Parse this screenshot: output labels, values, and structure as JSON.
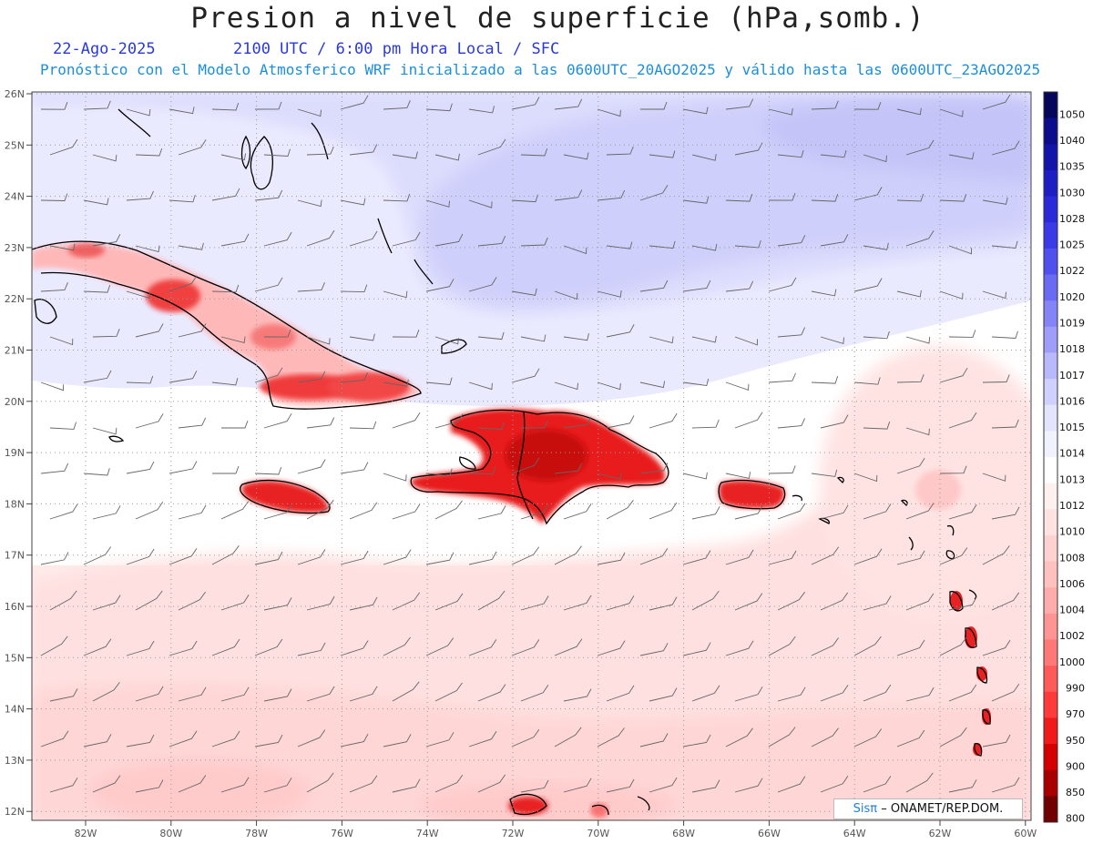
{
  "title": "Presion a nivel de superficie (hPa,somb.)",
  "subtitle_date": "22-Ago-2025",
  "subtitle_time": "2100 UTC / 6:00 pm Hora Local / SFC",
  "subtitle_model": "Pronóstico con el Modelo Atmosferico WRF inicializado a las 0600UTC_20AGO2025 y válido hasta las  0600UTC_23AGO2025",
  "lat_ticks": [
    "26N",
    "25N",
    "24N",
    "23N",
    "22N",
    "21N",
    "20N",
    "19N",
    "18N",
    "17N",
    "16N",
    "15N",
    "14N",
    "13N",
    "12N"
  ],
  "lon_ticks": [
    "82W",
    "80W",
    "78W",
    "76W",
    "74W",
    "72W",
    "70W",
    "68W",
    "66W",
    "64W",
    "62W",
    "60W"
  ],
  "colorbar": {
    "levels": [
      "1050",
      "1040",
      "1035",
      "1030",
      "1028",
      "1025",
      "1022",
      "1020",
      "1019",
      "1018",
      "1017",
      "1016",
      "1015",
      "1014",
      "1013",
      "1012",
      "1010",
      "1008",
      "1006",
      "1004",
      "1002",
      "1000",
      "990",
      "970",
      "950",
      "900",
      "850",
      "800"
    ],
    "colors": [
      "#06065a",
      "#0c0c8c",
      "#1414aa",
      "#1e1ec4",
      "#2a2ad8",
      "#3a3ae6",
      "#5050ee",
      "#6a6af2",
      "#8484f6",
      "#9e9ef8",
      "#b8b8fa",
      "#d0d0fc",
      "#e4e4fe",
      "#f2f2ff",
      "#ffffff",
      "#fff0f0",
      "#ffe2e2",
      "#ffd2d2",
      "#ffc0c0",
      "#ffacac",
      "#ff9494",
      "#ff7878",
      "#ff5a5a",
      "#ff3a3a",
      "#f01a1a",
      "#d40000",
      "#a80000",
      "#700000"
    ]
  },
  "credit": {
    "brand": "Sisπ",
    "text": "– ONAMET/REP.DOM."
  }
}
